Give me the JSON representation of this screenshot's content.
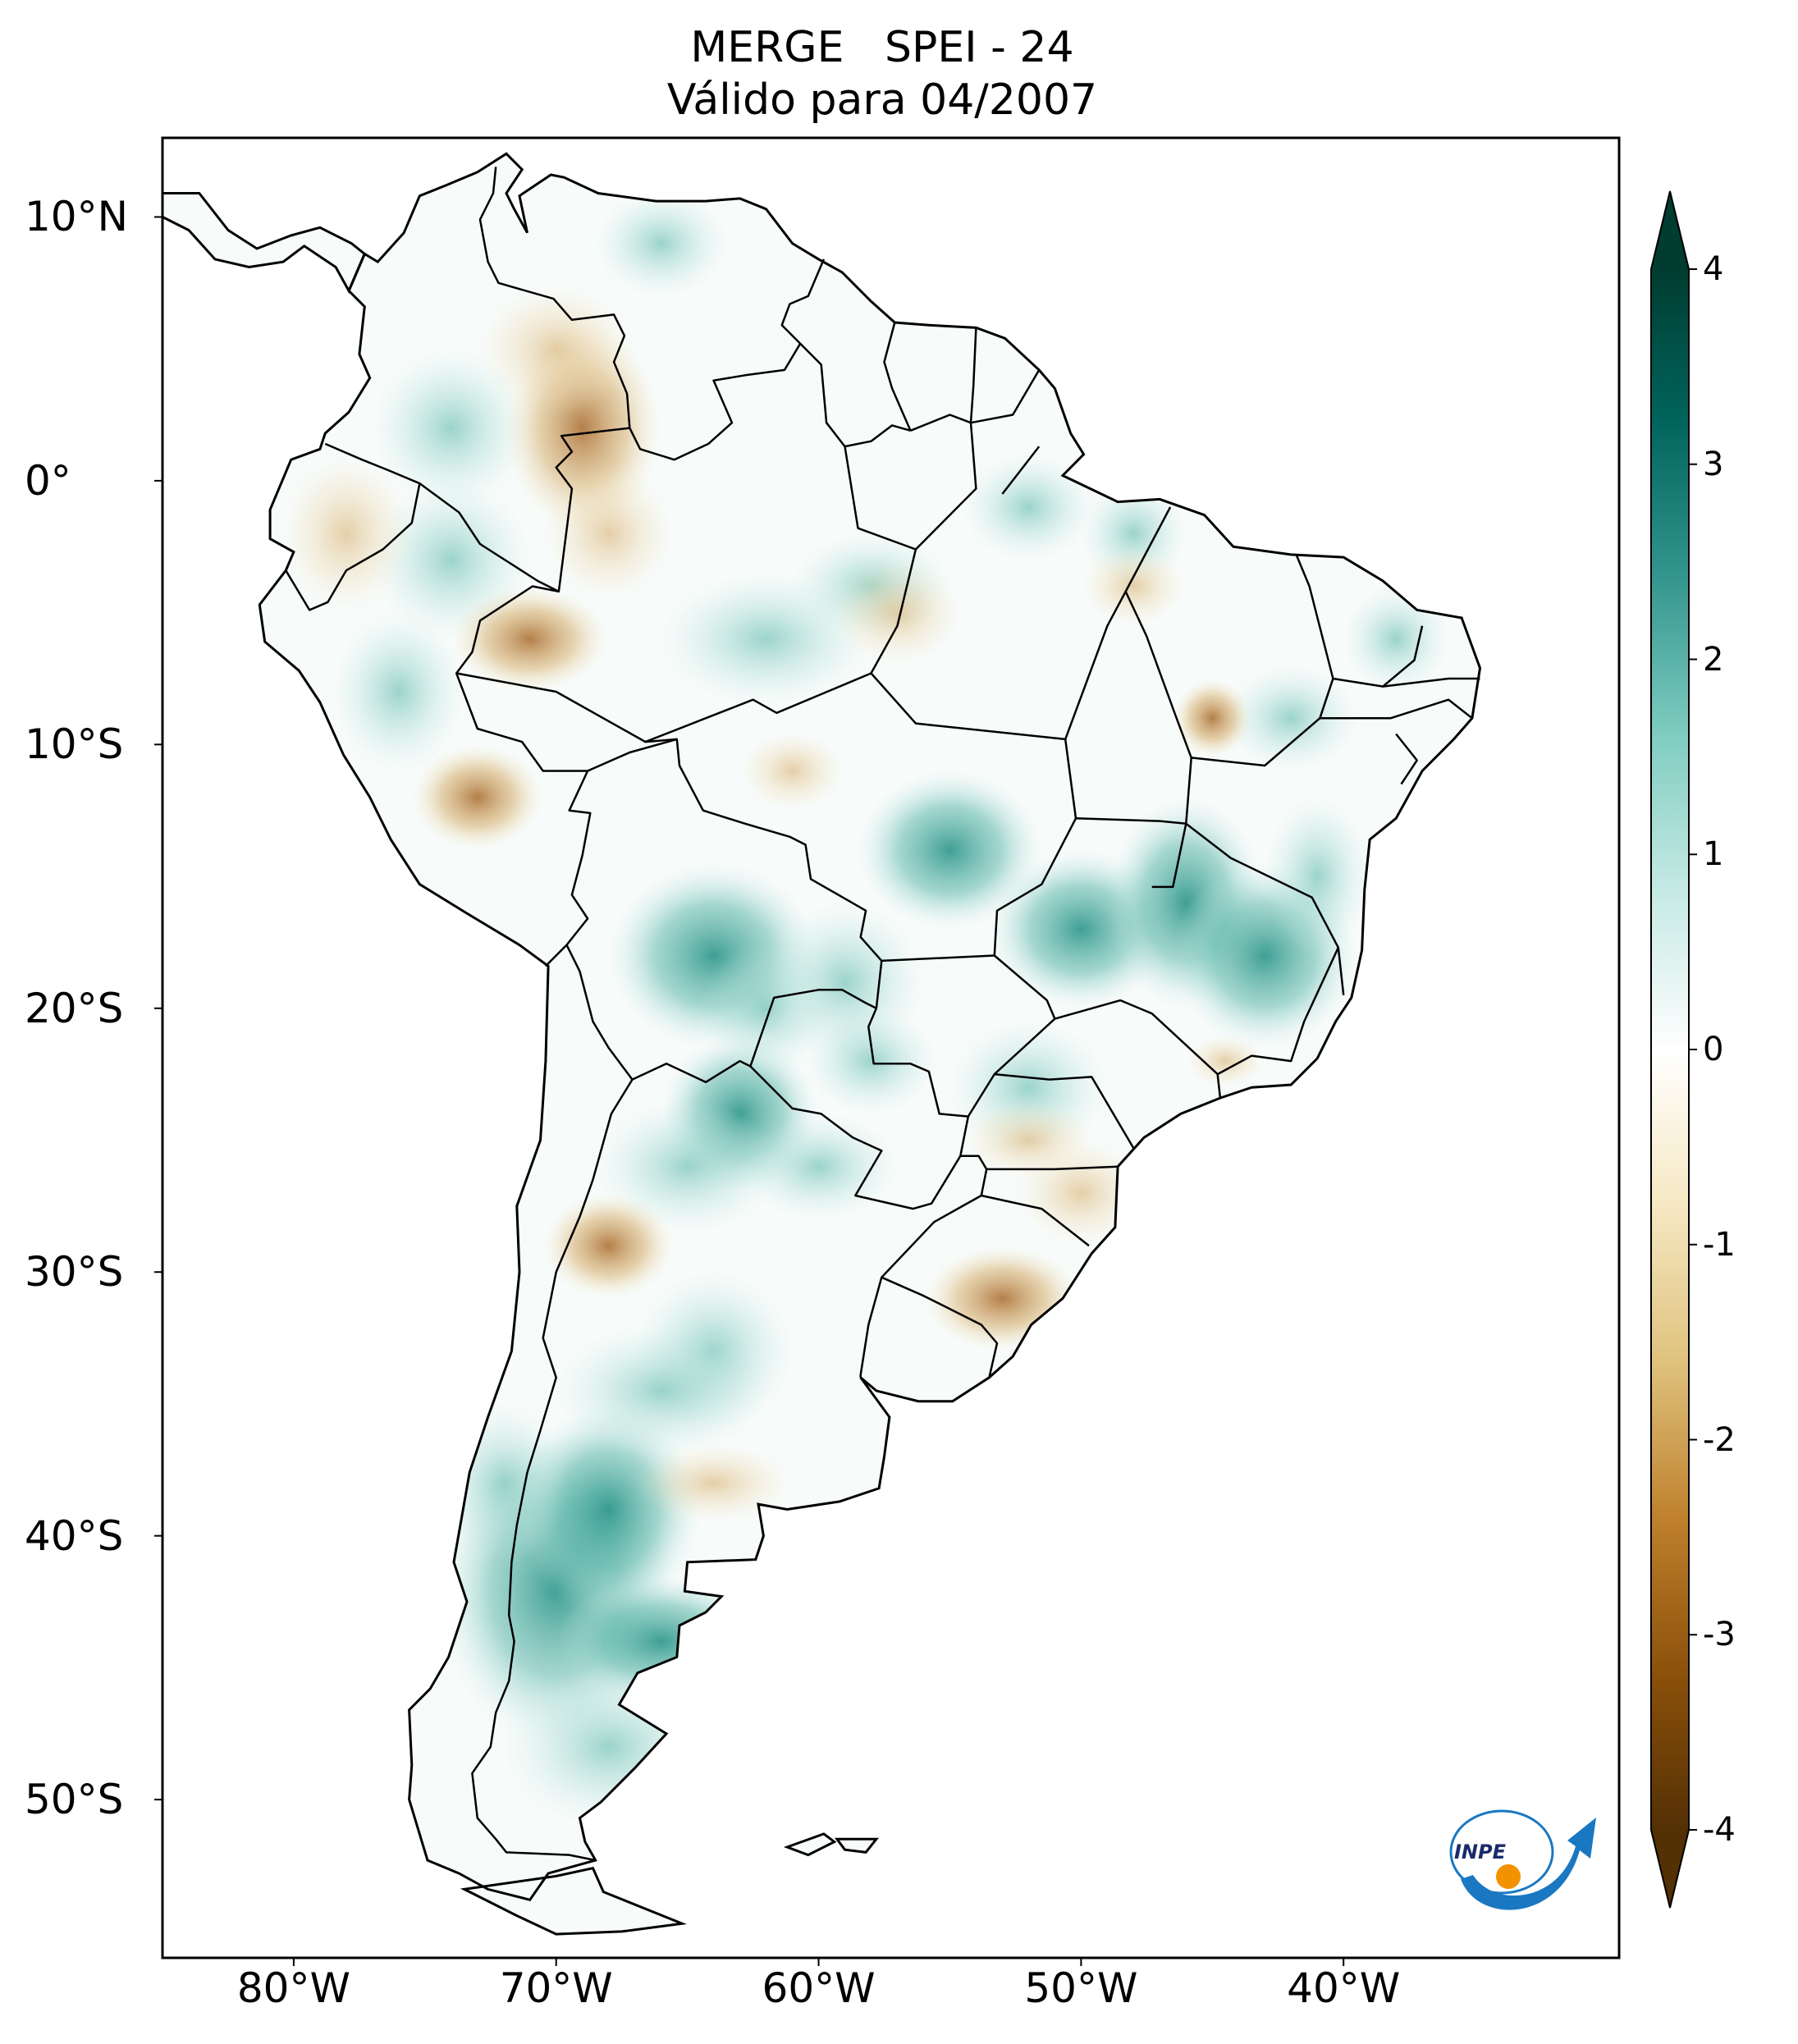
{
  "title": {
    "line1": "MERGE   SPEI - 24",
    "line2": "Válido para 04/2007"
  },
  "map": {
    "lat_ticks": [
      {
        "value": 10,
        "label": "10°N"
      },
      {
        "value": 0,
        "label": "0°"
      },
      {
        "value": -10,
        "label": "10°S"
      },
      {
        "value": -20,
        "label": "20°S"
      },
      {
        "value": -30,
        "label": "30°S"
      },
      {
        "value": -40,
        "label": "40°S"
      },
      {
        "value": -50,
        "label": "50°S"
      }
    ],
    "lon_ticks": [
      {
        "value": -80,
        "label": "80°W"
      },
      {
        "value": -70,
        "label": "70°W"
      },
      {
        "value": -60,
        "label": "60°W"
      },
      {
        "value": -50,
        "label": "50°W"
      },
      {
        "value": -40,
        "label": "40°W"
      }
    ],
    "extent": {
      "lon_min": -85,
      "lon_max": -29.5,
      "lat_min": -56,
      "lat_max": 13
    }
  },
  "colorbar": {
    "ticks": [
      {
        "value": 4,
        "label": "4"
      },
      {
        "value": 3,
        "label": "3"
      },
      {
        "value": 2,
        "label": "2"
      },
      {
        "value": 1,
        "label": "1"
      },
      {
        "value": 0,
        "label": "0"
      },
      {
        "value": -1,
        "label": "-1"
      },
      {
        "value": -2,
        "label": "-2"
      },
      {
        "value": -3,
        "label": "-3"
      },
      {
        "value": -4,
        "label": "-4"
      }
    ],
    "range": [
      -4,
      4
    ],
    "extend": "both",
    "colormap": "BrBG",
    "stops": [
      "#543005",
      "#8c510a",
      "#bf812d",
      "#dfc27d",
      "#f6e8c3",
      "#ffffff",
      "#c7eae5",
      "#80cdc1",
      "#35978f",
      "#01665e",
      "#003c30"
    ]
  },
  "logo": {
    "text": "INPE"
  },
  "colors": {
    "border": "#000000",
    "ocean": "#ffffff",
    "land_neutral": "#f7fbfa",
    "wet": "#5fb8ac",
    "dry": "#cfa15a"
  }
}
